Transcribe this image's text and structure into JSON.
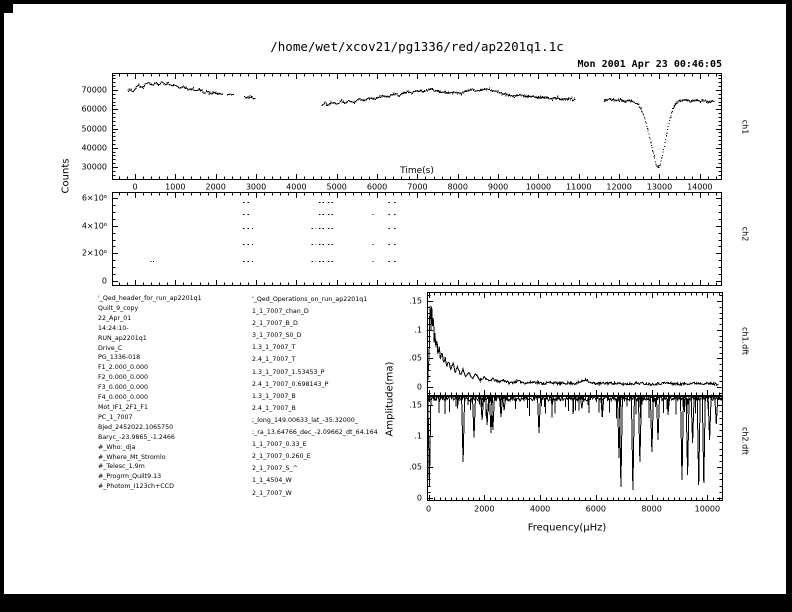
{
  "window": {
    "title": "/home/wet/xcov21/pg1336/red/ap2201q1.1c",
    "timestamp": "Mon 2001 Apr 23 00:46:05"
  },
  "labels": {
    "counts": "Counts",
    "time": "Time(s)",
    "amplitude": "Amplitude(ma)",
    "frequency": "Frequency(μHz)",
    "right": [
      "ch1",
      "ch2",
      "ch1.dft",
      "ch2.dft"
    ]
  },
  "log": {
    "left": [
      "'_Qed_header_for_run_ap2201q1",
      "Quilt_9_copy",
      "22_Apr_01",
      "14:24:10-",
      "RUN_ap2201q1",
      "Drive_C",
      "PG_1336-018",
      "F1_2.000_0.000",
      "F2_0.000_0.000",
      "F3_0.000_0.000",
      "F4_0.000_0.000",
      "Mot_IF1_2F1_F1",
      "PC_1_7007",
      "Bjed_2452022.1065750",
      "Baryc_-23.9865_-1.2466",
      "#_Who:_dja",
      "#_Where_Mt_Stromlo",
      "#_Telesc_1.9m",
      "#_Progrm_Quilt9.13",
      "#_Photom_I123ch+CCD"
    ],
    "right": [
      "'_Qed_Operations_on_run_ap2201q1",
      "1_1_7007_chan_D",
      "2_1_7007_B_D",
      "3_1_7007_S0_D",
      "1.3_1_7007_T",
      "2.4_1_7007_T",
      "1.3_1_7007_1.53453_P",
      "2.4_1_7007_0.698143_P",
      "1.3_1_7007_B",
      "2.4_1_7007_B",
      ";_long_149.00633_lat_-35.32000_",
      ";_ra_13.64766_dec_-2.09662_dt_64.164",
      "1_1_7007_0.33_E",
      "2_1_7007_0.260_E",
      "2_1_7007_S_^",
      "1_1_4504_W",
      "2_1_7007_W"
    ]
  },
  "colors": {
    "ink": "#000000",
    "paper": "#ffffff"
  },
  "chart_data": [
    {
      "id": "ch1",
      "type": "scatter",
      "ylabel": "Counts",
      "xlabel": "Time(s)",
      "xlim": [
        -570,
        14550
      ],
      "ylim": [
        23250,
        78830
      ],
      "ticks": {
        "xmajor": 1000,
        "xminor": 200,
        "ymajor": 10000,
        "yminor": 2000
      },
      "xlabels": [
        0,
        1000,
        2000,
        3000,
        4000,
        5000,
        6000,
        7000,
        8000,
        9000,
        10000,
        11000,
        12000,
        13000,
        14000
      ],
      "ylabels": [
        30000,
        40000,
        50000,
        60000,
        70000
      ],
      "noise": 450,
      "dt": 16,
      "segments": [
        [
          [
            -180,
            70500
          ],
          [
            -60,
            69200
          ],
          [
            30,
            71800
          ],
          [
            90,
            72600
          ],
          [
            160,
            71200
          ],
          [
            240,
            72800
          ],
          [
            330,
            73600
          ],
          [
            420,
            72200
          ],
          [
            500,
            73800
          ],
          [
            570,
            72600
          ],
          [
            650,
            74100
          ],
          [
            730,
            72800
          ],
          [
            810,
            73500
          ],
          [
            900,
            71900
          ],
          [
            1000,
            72500
          ],
          [
            1100,
            70900
          ],
          [
            1200,
            71700
          ],
          [
            1300,
            70100
          ],
          [
            1400,
            70700
          ],
          [
            1500,
            69300
          ],
          [
            1600,
            69900
          ],
          [
            1700,
            68500
          ],
          [
            1800,
            69100
          ],
          [
            1900,
            68100
          ],
          [
            2000,
            68700
          ],
          [
            2100,
            67700
          ],
          [
            2160,
            67900
          ]
        ],
        [
          [
            2280,
            67600
          ],
          [
            2350,
            68000
          ],
          [
            2430,
            67300
          ]
        ],
        [
          [
            2700,
            66600
          ],
          [
            2780,
            65900
          ],
          [
            2860,
            66400
          ],
          [
            2960,
            65300
          ]
        ],
        [
          [
            4620,
            61800
          ],
          [
            4700,
            63400
          ],
          [
            4780,
            62200
          ],
          [
            4880,
            63800
          ],
          [
            4980,
            62600
          ],
          [
            5100,
            64200
          ],
          [
            5200,
            63000
          ],
          [
            5300,
            64400
          ],
          [
            5430,
            63400
          ],
          [
            5550,
            65400
          ],
          [
            5650,
            64200
          ],
          [
            5800,
            66200
          ],
          [
            5950,
            65400
          ],
          [
            6100,
            66800
          ],
          [
            6250,
            66200
          ],
          [
            6400,
            68000
          ],
          [
            6550,
            67200
          ],
          [
            6700,
            69200
          ],
          [
            6850,
            68400
          ],
          [
            7000,
            69800
          ],
          [
            7150,
            69200
          ],
          [
            7300,
            70400
          ],
          [
            7450,
            69600
          ],
          [
            7600,
            69000
          ],
          [
            7750,
            68200
          ],
          [
            7900,
            68800
          ],
          [
            8050,
            68000
          ],
          [
            8200,
            69400
          ],
          [
            8350,
            70200
          ],
          [
            8500,
            69400
          ],
          [
            8650,
            70600
          ],
          [
            8800,
            69800
          ],
          [
            8950,
            69200
          ],
          [
            9100,
            68200
          ],
          [
            9250,
            67400
          ],
          [
            9400,
            66800
          ],
          [
            9550,
            67400
          ],
          [
            9700,
            66400
          ],
          [
            9850,
            66800
          ],
          [
            10000,
            65800
          ],
          [
            10150,
            66400
          ],
          [
            10300,
            65400
          ],
          [
            10450,
            66000
          ],
          [
            10600,
            65000
          ],
          [
            10750,
            65400
          ],
          [
            10900,
            64800
          ]
        ],
        [
          [
            11620,
            64600
          ],
          [
            11750,
            65200
          ],
          [
            11880,
            64400
          ],
          [
            12000,
            65000
          ],
          [
            12120,
            64200
          ],
          [
            12250,
            64600
          ],
          [
            12370,
            63600
          ],
          [
            12450,
            62600
          ],
          [
            12530,
            60000
          ],
          [
            12600,
            56600
          ],
          [
            12680,
            51000
          ],
          [
            12760,
            44000
          ],
          [
            12840,
            36500
          ],
          [
            12900,
            31500
          ],
          [
            12950,
            29700
          ],
          [
            13000,
            31000
          ],
          [
            13060,
            36000
          ],
          [
            13130,
            43000
          ],
          [
            13200,
            50500
          ],
          [
            13270,
            57000
          ],
          [
            13340,
            61500
          ],
          [
            13420,
            63600
          ],
          [
            13500,
            64400
          ],
          [
            13620,
            65000
          ],
          [
            13750,
            64200
          ],
          [
            13880,
            64800
          ],
          [
            14000,
            64000
          ],
          [
            14120,
            64600
          ],
          [
            14250,
            63800
          ],
          [
            14350,
            64200
          ]
        ]
      ]
    },
    {
      "id": "ch2",
      "type": "dashes",
      "xlim": [
        -570,
        14550
      ],
      "ylim": [
        -360000,
        6440000
      ],
      "ticks": {
        "xmajor": 1000,
        "xminor": 200,
        "ymajor": 2000000,
        "yminor": 500000
      },
      "ylabels": [
        {
          "v": 0,
          "t": "0"
        },
        {
          "v": 2000000,
          "t": "2×10⁶"
        },
        {
          "v": 4000000,
          "t": "4×10⁶"
        },
        {
          "v": 6000000,
          "t": "6×10⁶"
        }
      ],
      "rows": [
        5700000,
        4850000,
        3800000,
        2650000,
        1450000
      ],
      "clusters": [
        {
          "rows": [
            0,
            1,
            2,
            3,
            4
          ],
          "dashes": [
            [
              2680,
              45
            ],
            [
              2790,
              35
            ]
          ]
        },
        {
          "rows": [
            2,
            3,
            4
          ],
          "dashes": [
            [
              2900,
              25
            ]
          ]
        },
        {
          "rows": [
            2,
            3,
            4
          ],
          "dashes": [
            [
              4380,
              30
            ],
            [
              4470,
              20
            ]
          ]
        },
        {
          "rows": [
            0,
            1,
            2,
            3,
            4
          ],
          "dashes": [
            [
              4560,
              170
            ],
            [
              4780,
              130
            ]
          ]
        },
        {
          "rows": [
            1,
            3,
            4
          ],
          "dashes": [
            [
              5890,
              25
            ]
          ]
        },
        {
          "rows": [
            0,
            1,
            2,
            3,
            4
          ],
          "dashes": [
            [
              6280,
              55
            ],
            [
              6420,
              65
            ]
          ]
        },
        {
          "rows": [
            4
          ],
          "dashes": [
            [
              380,
              25
            ],
            [
              450,
              18
            ]
          ]
        }
      ]
    },
    {
      "id": "ch1dft",
      "type": "line",
      "ylabel": "Amplitude(ma)",
      "xlim": [
        -55,
        10560
      ],
      "ylim": [
        -0.0157,
        0.166
      ],
      "ticks": {
        "xmajor": 2000,
        "xminor": 200,
        "ymajor": 0.05,
        "yminor": 0.01
      },
      "ylabels": [
        {
          "v": 0,
          "t": "0"
        },
        {
          "v": 0.05,
          "t": ".05"
        },
        {
          "v": 0.1,
          "t": ".1"
        },
        {
          "v": 0.15,
          "t": ".15"
        }
      ],
      "noise": 0.0022,
      "df": 22,
      "points": [
        [
          -40,
          0.002
        ],
        [
          20,
          0.05
        ],
        [
          55,
          0.163
        ],
        [
          90,
          0.095
        ],
        [
          110,
          0.147
        ],
        [
          140,
          0.1
        ],
        [
          170,
          0.135
        ],
        [
          200,
          0.075
        ],
        [
          230,
          0.1
        ],
        [
          260,
          0.063
        ],
        [
          300,
          0.088
        ],
        [
          340,
          0.055
        ],
        [
          380,
          0.072
        ],
        [
          430,
          0.048
        ],
        [
          480,
          0.062
        ],
        [
          540,
          0.04
        ],
        [
          600,
          0.052
        ],
        [
          660,
          0.035
        ],
        [
          720,
          0.046
        ],
        [
          800,
          0.03
        ],
        [
          880,
          0.042
        ],
        [
          960,
          0.026
        ],
        [
          1040,
          0.036
        ],
        [
          1140,
          0.022
        ],
        [
          1240,
          0.03
        ],
        [
          1340,
          0.018
        ],
        [
          1450,
          0.026
        ],
        [
          1560,
          0.015
        ],
        [
          1700,
          0.022
        ],
        [
          1850,
          0.012
        ],
        [
          2000,
          0.018
        ],
        [
          2150,
          0.01
        ],
        [
          2300,
          0.014
        ],
        [
          2500,
          0.009
        ],
        [
          2700,
          0.012
        ],
        [
          2900,
          0.007
        ],
        [
          3200,
          0.01
        ],
        [
          3500,
          0.007
        ],
        [
          3800,
          0.009
        ],
        [
          4100,
          0.006
        ],
        [
          4400,
          0.008
        ],
        [
          4700,
          0.006
        ],
        [
          5000,
          0.007
        ],
        [
          5300,
          0.006
        ],
        [
          5500,
          0.01
        ],
        [
          5650,
          0.014
        ],
        [
          5800,
          0.007
        ],
        [
          6100,
          0.006
        ],
        [
          6500,
          0.007
        ],
        [
          7000,
          0.005
        ],
        [
          7500,
          0.007
        ],
        [
          8000,
          0.005
        ],
        [
          8500,
          0.007
        ],
        [
          9000,
          0.005
        ],
        [
          9500,
          0.007
        ],
        [
          10000,
          0.006
        ],
        [
          10400,
          0.005
        ]
      ]
    },
    {
      "id": "ch2dft",
      "type": "dropline",
      "xlabel": "Frequency(μHz)",
      "xlim": [
        -55,
        10560
      ],
      "ylim": [
        -0.005,
        0.165
      ],
      "ticks": {
        "xmajor": 2000,
        "xminor": 200,
        "ymajor": 0.05,
        "yminor": 0.01
      },
      "xlabels": [
        0,
        2000,
        4000,
        6000,
        8000,
        10000
      ],
      "ylabels": [
        {
          "v": 0,
          "t": "0"
        },
        {
          "v": 0.05,
          "t": ".05"
        },
        {
          "v": 0.1,
          "t": ".1"
        },
        {
          "v": 0.15,
          "t": ".15"
        }
      ],
      "baseline": 0.161,
      "base_noise": 0.004,
      "df": 25,
      "stubble": {
        "n": 55,
        "fmin": 300,
        "fmax": 10450,
        "vmin": 0.128,
        "vmax": 0.152
      },
      "spikes": [
        [
          30,
          0.018
        ],
        [
          1240,
          0.058
        ],
        [
          1630,
          0.098
        ],
        [
          1920,
          0.126
        ],
        [
          2100,
          0.118
        ],
        [
          2240,
          0.105
        ],
        [
          2310,
          0.11
        ],
        [
          2600,
          0.131
        ],
        [
          2710,
          0.142
        ],
        [
          3960,
          0.105
        ],
        [
          4430,
          0.15
        ],
        [
          5500,
          0.145
        ],
        [
          6230,
          0.131
        ],
        [
          6830,
          0.065
        ],
        [
          6900,
          0.018
        ],
        [
          7330,
          0.013
        ],
        [
          7580,
          0.058
        ],
        [
          8010,
          0.074
        ],
        [
          8230,
          0.094
        ],
        [
          8590,
          0.137
        ],
        [
          9090,
          0.029
        ],
        [
          9290,
          0.037
        ],
        [
          9470,
          0.089
        ],
        [
          9690,
          0.021
        ],
        [
          9870,
          0.024
        ],
        [
          10080,
          0.094
        ],
        [
          10320,
          0.12
        ]
      ]
    }
  ]
}
